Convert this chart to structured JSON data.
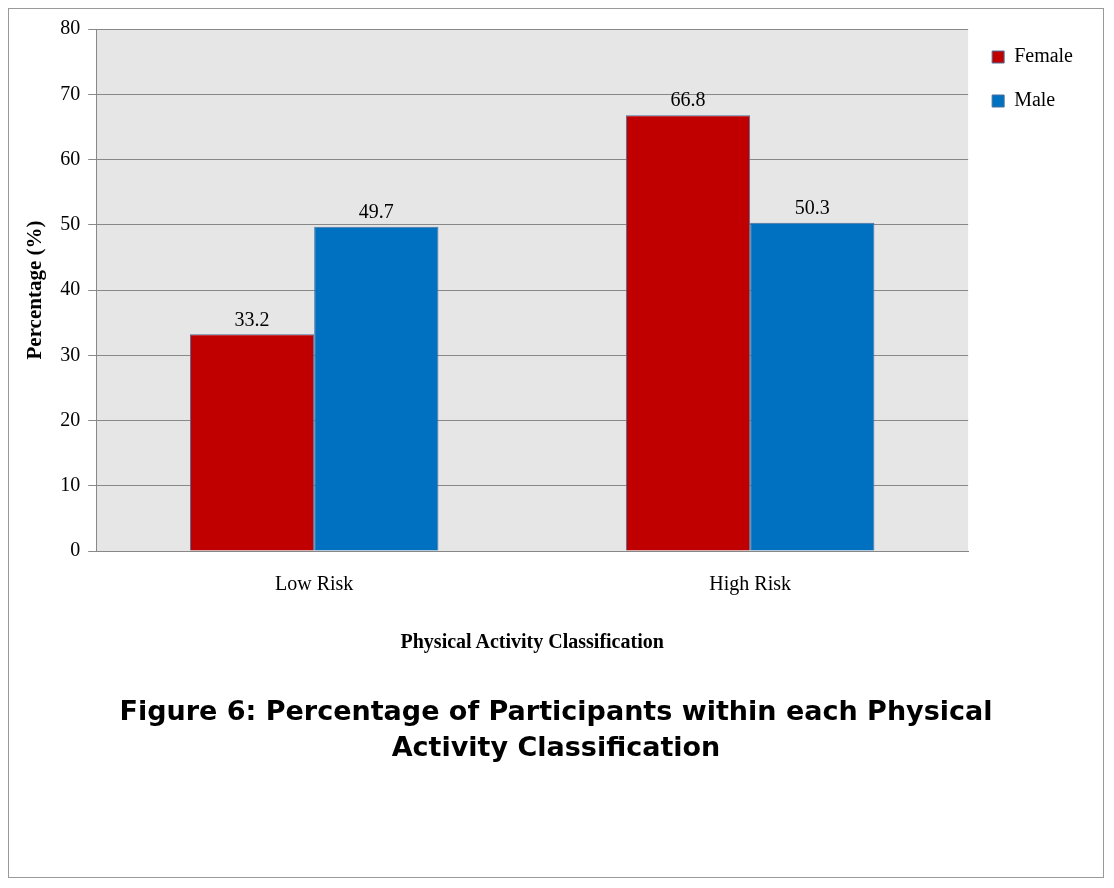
{
  "chart_data": {
    "type": "bar",
    "title": "Figure 6: Percentage of Participants within each Physical Activity Classification",
    "xlabel": "Physical Activity Classification",
    "ylabel": "Percentage (%)",
    "categories": [
      "Low Risk",
      "High Risk"
    ],
    "series": [
      {
        "name": "Female",
        "color": "#c00000",
        "values": [
          33.2,
          66.8
        ]
      },
      {
        "name": "Male",
        "color": "#0070c0",
        "values": [
          49.7,
          50.3
        ]
      }
    ],
    "ylim": [
      0,
      80
    ],
    "yticks": [
      0,
      10,
      20,
      30,
      40,
      50,
      60,
      70,
      80
    ],
    "grid": "y",
    "legend": "top right",
    "data_labels": true
  }
}
